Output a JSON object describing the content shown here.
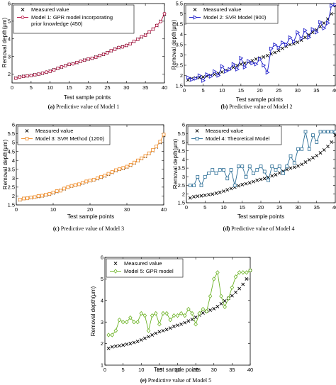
{
  "chart_data": [
    {
      "type": "line",
      "panel": "a",
      "caption_label": "(a)",
      "caption_text": "Predictive value of Model 1",
      "xlabel": "Test sample points",
      "ylabel": "Removal depth(μm)",
      "xlim": [
        0,
        40
      ],
      "ylim": [
        1.5,
        6
      ],
      "xticks": [
        "0",
        "5",
        "10",
        "15",
        "20",
        "25",
        "30",
        "35",
        "40"
      ],
      "yticks": [
        "2",
        "3",
        "4",
        "5",
        "6"
      ],
      "legend_position": "top-left",
      "series": [
        {
          "name": "Measured value",
          "color": "#000000",
          "marker": "x",
          "y": [
            1.78,
            1.85,
            1.88,
            1.9,
            1.93,
            1.97,
            2.0,
            2.05,
            2.1,
            2.17,
            2.25,
            2.32,
            2.4,
            2.48,
            2.55,
            2.6,
            2.65,
            2.72,
            2.8,
            2.85,
            2.9,
            2.97,
            3.05,
            3.12,
            3.22,
            3.32,
            3.42,
            3.5,
            3.55,
            3.62,
            3.72,
            3.85,
            3.98,
            4.1,
            4.22,
            4.38,
            4.55,
            4.75,
            5.0,
            5.4
          ]
        },
        {
          "name": "Model 1: GPR model incorporating prior knowledge (450)",
          "name_lines": [
            "Model 1: GPR model incorporating",
            "prior knowledge (450)"
          ],
          "color": "#b40a3c",
          "marker": "o",
          "y": [
            1.76,
            1.83,
            1.87,
            1.9,
            1.92,
            1.96,
            2.0,
            2.06,
            2.12,
            2.16,
            2.24,
            2.33,
            2.41,
            2.47,
            2.56,
            2.58,
            2.66,
            2.73,
            2.79,
            2.86,
            2.9,
            2.96,
            3.06,
            3.12,
            3.21,
            3.33,
            3.41,
            3.51,
            3.54,
            3.63,
            3.71,
            3.86,
            3.97,
            4.12,
            4.2,
            4.39,
            4.55,
            4.76,
            4.98,
            5.42
          ]
        }
      ]
    },
    {
      "type": "line",
      "panel": "b",
      "caption_label": "(b)",
      "caption_text": "Predictive value of Model 2",
      "xlabel": "Test sample points",
      "ylabel": "Removal depth(μm)",
      "xlim": [
        0,
        40
      ],
      "ylim": [
        1.5,
        5.5
      ],
      "xticks": [
        "0",
        "5",
        "10",
        "15",
        "20",
        "25",
        "30",
        "35",
        "40"
      ],
      "yticks": [
        "1.5",
        "2",
        "2.5",
        "3",
        "3.5",
        "4",
        "4.5",
        "5",
        "5.5"
      ],
      "legend_position": "top-left",
      "series": [
        {
          "name": "Measured value",
          "color": "#000000",
          "marker": "x",
          "y": [
            1.78,
            1.85,
            1.88,
            1.9,
            1.93,
            1.97,
            2.0,
            2.05,
            2.1,
            2.17,
            2.25,
            2.32,
            2.4,
            2.48,
            2.55,
            2.6,
            2.65,
            2.72,
            2.8,
            2.85,
            2.9,
            2.97,
            3.05,
            3.12,
            3.22,
            3.32,
            3.42,
            3.5,
            3.55,
            3.62,
            3.72,
            3.85,
            3.98,
            4.1,
            4.22,
            4.38,
            4.55,
            4.75,
            5.0,
            5.4
          ]
        },
        {
          "name": "Model 2: SVR Model (900)",
          "color": "#1414c8",
          "marker": "triangle-right",
          "y": [
            1.9,
            1.8,
            1.85,
            2.0,
            1.75,
            2.05,
            1.95,
            2.2,
            2.0,
            2.45,
            2.2,
            2.3,
            2.55,
            2.3,
            2.85,
            2.4,
            2.7,
            2.6,
            2.55,
            2.8,
            2.5,
            2.15,
            3.3,
            3.5,
            3.35,
            3.6,
            3.5,
            3.85,
            3.65,
            4.1,
            3.8,
            4.2,
            3.85,
            4.25,
            4.1,
            4.6,
            4.3,
            4.55,
            5.4,
            5.45
          ]
        }
      ]
    },
    {
      "type": "line",
      "panel": "c",
      "caption_label": "(c)",
      "caption_text": "Predictive value of Model 3",
      "xlabel": "Test sample points",
      "ylabel": "Removal depth(μm)",
      "xlim": [
        0,
        40
      ],
      "ylim": [
        1.5,
        6
      ],
      "xticks": [
        "0",
        "10",
        "20",
        "30",
        "40"
      ],
      "yticks": [
        "1.5",
        "2",
        "2.5",
        "3",
        "3.5",
        "4",
        "4.5",
        "5",
        "5.5",
        "6"
      ],
      "legend_position": "top-left",
      "series": [
        {
          "name": "Measured value",
          "color": "#000000",
          "marker": "x",
          "y": [
            1.78,
            1.85,
            1.88,
            1.9,
            1.93,
            1.97,
            2.0,
            2.05,
            2.1,
            2.17,
            2.25,
            2.32,
            2.4,
            2.48,
            2.55,
            2.6,
            2.65,
            2.72,
            2.8,
            2.85,
            2.9,
            2.97,
            3.05,
            3.12,
            3.22,
            3.32,
            3.42,
            3.5,
            3.55,
            3.62,
            3.72,
            3.85,
            3.98,
            4.1,
            4.22,
            4.38,
            4.55,
            4.75,
            5.0,
            5.4
          ]
        },
        {
          "name": "Model 3: SVR Method (1200)",
          "color": "#f08c28",
          "marker": "square",
          "y": [
            1.8,
            1.86,
            1.87,
            1.92,
            1.94,
            2.0,
            2.02,
            2.08,
            2.12,
            2.2,
            2.28,
            2.3,
            2.42,
            2.5,
            2.57,
            2.62,
            2.66,
            2.75,
            2.82,
            2.87,
            2.92,
            3.0,
            3.08,
            3.15,
            3.25,
            3.35,
            3.45,
            3.52,
            3.58,
            3.65,
            3.75,
            3.88,
            4.0,
            4.12,
            4.25,
            4.4,
            4.58,
            4.78,
            5.05,
            5.45
          ]
        }
      ]
    },
    {
      "type": "line",
      "panel": "d",
      "caption_label": "(d)",
      "caption_text": "Predictive value of Model 4",
      "xlabel": "Test sample points",
      "ylabel": "Removal depth(μm)",
      "xlim": [
        0,
        40
      ],
      "ylim": [
        1.5,
        6
      ],
      "xticks": [
        "0",
        "5",
        "10",
        "15",
        "20",
        "25",
        "30",
        "35",
        "40"
      ],
      "yticks": [
        "1.5",
        "2",
        "2.5",
        "3",
        "3.5",
        "4",
        "4.5",
        "5",
        "5.5",
        "6"
      ],
      "legend_position": "top-left",
      "series": [
        {
          "name": "Measured value",
          "color": "#000000",
          "marker": "x",
          "y": [
            1.78,
            1.85,
            1.88,
            1.9,
            1.93,
            1.97,
            2.0,
            2.05,
            2.1,
            2.17,
            2.25,
            2.32,
            2.4,
            2.48,
            2.55,
            2.6,
            2.65,
            2.72,
            2.8,
            2.85,
            2.9,
            2.97,
            3.05,
            3.12,
            3.22,
            3.32,
            3.42,
            3.5,
            3.55,
            3.62,
            3.72,
            3.85,
            3.98,
            4.1,
            4.22,
            4.38,
            4.55,
            4.75,
            5.0,
            5.4
          ]
        },
        {
          "name": "Model 4: Theoretical Model",
          "color": "#2c6e96",
          "marker": "square",
          "y": [
            2.5,
            2.5,
            3.0,
            2.5,
            3.0,
            3.2,
            3.4,
            3.2,
            3.4,
            3.4,
            2.9,
            3.4,
            2.5,
            3.6,
            3.6,
            3.0,
            3.6,
            3.2,
            3.4,
            3.6,
            3.3,
            2.8,
            3.6,
            3.4,
            3.6,
            3.2,
            3.6,
            4.2,
            3.8,
            4.6,
            4.6,
            5.6,
            4.6,
            5.4,
            5.0,
            5.6,
            5.6,
            5.6,
            5.6,
            5.6
          ]
        }
      ]
    },
    {
      "type": "line",
      "panel": "e",
      "caption_label": "(e)",
      "caption_text": "Predictive value of Model 5",
      "xlabel": "Test sample points",
      "ylabel": "Removal depth(μm)",
      "xlim": [
        0,
        40
      ],
      "ylim": [
        1,
        6
      ],
      "xticks": [
        "0",
        "5",
        "10",
        "15",
        "20",
        "25",
        "30",
        "35",
        "40"
      ],
      "yticks": [
        "1",
        "2",
        "3",
        "4",
        "5",
        "6"
      ],
      "legend_position": "top-left",
      "series": [
        {
          "name": "Measured value",
          "color": "#000000",
          "marker": "x",
          "y": [
            1.78,
            1.85,
            1.88,
            1.9,
            1.93,
            1.97,
            2.0,
            2.05,
            2.1,
            2.17,
            2.25,
            2.32,
            2.4,
            2.48,
            2.55,
            2.6,
            2.65,
            2.72,
            2.8,
            2.85,
            2.9,
            2.97,
            3.05,
            3.12,
            3.22,
            3.32,
            3.42,
            3.5,
            3.55,
            3.62,
            3.72,
            3.85,
            3.98,
            4.1,
            4.22,
            4.38,
            4.55,
            4.75,
            5.0,
            5.4
          ]
        },
        {
          "name": "Model 5: GPR model",
          "color": "#6eb428",
          "marker": "diamond",
          "y": [
            2.4,
            2.4,
            2.6,
            3.1,
            3.0,
            3.0,
            3.2,
            3.0,
            3.0,
            3.4,
            3.3,
            2.6,
            3.3,
            3.4,
            2.9,
            3.4,
            3.4,
            3.1,
            3.3,
            3.3,
            3.4,
            3.3,
            3.6,
            3.4,
            2.9,
            3.4,
            3.6,
            3.5,
            4.2,
            5.0,
            5.3,
            4.2,
            3.7,
            4.1,
            4.6,
            5.1,
            5.3,
            5.3,
            5.3,
            5.4
          ]
        }
      ]
    }
  ]
}
